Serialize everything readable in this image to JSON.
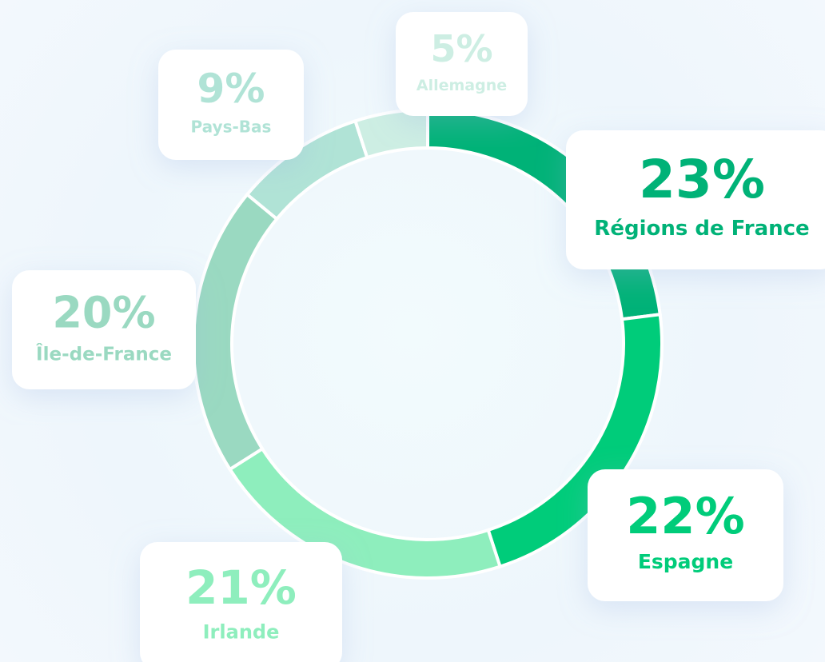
{
  "chart_data": {
    "type": "donut",
    "categories": [
      "Régions de France",
      "Espagne",
      "Irlande",
      "Île-de-France",
      "Pays-Bas",
      "Allemagne"
    ],
    "values": [
      23,
      22,
      21,
      20,
      9,
      5
    ],
    "value_labels": [
      "23%",
      "22%",
      "21%",
      "20%",
      "9%",
      "5%"
    ],
    "colors": [
      "#00b277",
      "#00cc7a",
      "#8eeebd",
      "#9ad9c1",
      "#b0e3d6",
      "#cdeee3"
    ]
  }
}
